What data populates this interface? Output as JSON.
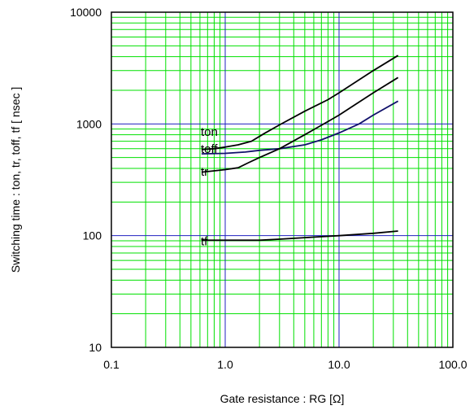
{
  "chart_data": {
    "type": "line",
    "title": "",
    "xlabel": "Gate resistance : RG [Ω]",
    "ylabel": "Switching time : ton, tr, toff, tf [ nsec ]",
    "x_scale": "log",
    "y_scale": "log",
    "xlim": [
      0.1,
      100
    ],
    "ylim": [
      10,
      10000
    ],
    "x_ticks": [
      0.1,
      1,
      10,
      100
    ],
    "x_tick_labels": [
      "0.1",
      "1.0",
      "10.0",
      "100.0"
    ],
    "y_ticks": [
      10,
      100,
      1000,
      10000
    ],
    "y_tick_labels": [
      "10",
      "100",
      "1000",
      "10000"
    ],
    "grid": true,
    "legend": "none",
    "colors": {
      "minor_grid": "#00e000",
      "major_grid": "#2020c0",
      "frame": "#000000",
      "series_black": "#000000",
      "series_navy": "#10106a"
    },
    "series": [
      {
        "name": "ton",
        "color": "#000000",
        "label_x": 0.61,
        "label_y": 780,
        "points": [
          [
            0.62,
            590
          ],
          [
            0.8,
            600
          ],
          [
            1.0,
            620
          ],
          [
            1.3,
            650
          ],
          [
            1.7,
            700
          ],
          [
            2.2,
            820
          ],
          [
            3.0,
            980
          ],
          [
            5.0,
            1300
          ],
          [
            8.0,
            1650
          ],
          [
            10.0,
            1900
          ],
          [
            20.0,
            3000
          ],
          [
            33.0,
            4100
          ]
        ]
      },
      {
        "name": "toff",
        "color": "#10106a",
        "label_x": 0.61,
        "label_y": 550,
        "points": [
          [
            0.62,
            540
          ],
          [
            1.0,
            545
          ],
          [
            1.5,
            560
          ],
          [
            2.0,
            580
          ],
          [
            3.0,
            600
          ],
          [
            5.0,
            650
          ],
          [
            7.0,
            720
          ],
          [
            10.0,
            830
          ],
          [
            15.0,
            1000
          ],
          [
            20.0,
            1200
          ],
          [
            33.0,
            1600
          ]
        ]
      },
      {
        "name": "tr",
        "color": "#000000",
        "label_x": 0.61,
        "label_y": 345,
        "points": [
          [
            0.62,
            370
          ],
          [
            0.8,
            380
          ],
          [
            1.0,
            390
          ],
          [
            1.3,
            405
          ],
          [
            1.6,
            450
          ],
          [
            2.0,
            500
          ],
          [
            3.0,
            600
          ],
          [
            5.0,
            800
          ],
          [
            8.0,
            1050
          ],
          [
            10.0,
            1200
          ],
          [
            20.0,
            1900
          ],
          [
            33.0,
            2600
          ]
        ]
      },
      {
        "name": "tf",
        "color": "#000000",
        "label_x": 0.61,
        "label_y": 82,
        "points": [
          [
            0.62,
            91
          ],
          [
            1.0,
            91
          ],
          [
            2.0,
            91
          ],
          [
            3.0,
            93
          ],
          [
            5.0,
            96
          ],
          [
            10.0,
            100
          ],
          [
            20.0,
            105
          ],
          [
            33.0,
            110
          ]
        ]
      }
    ]
  }
}
